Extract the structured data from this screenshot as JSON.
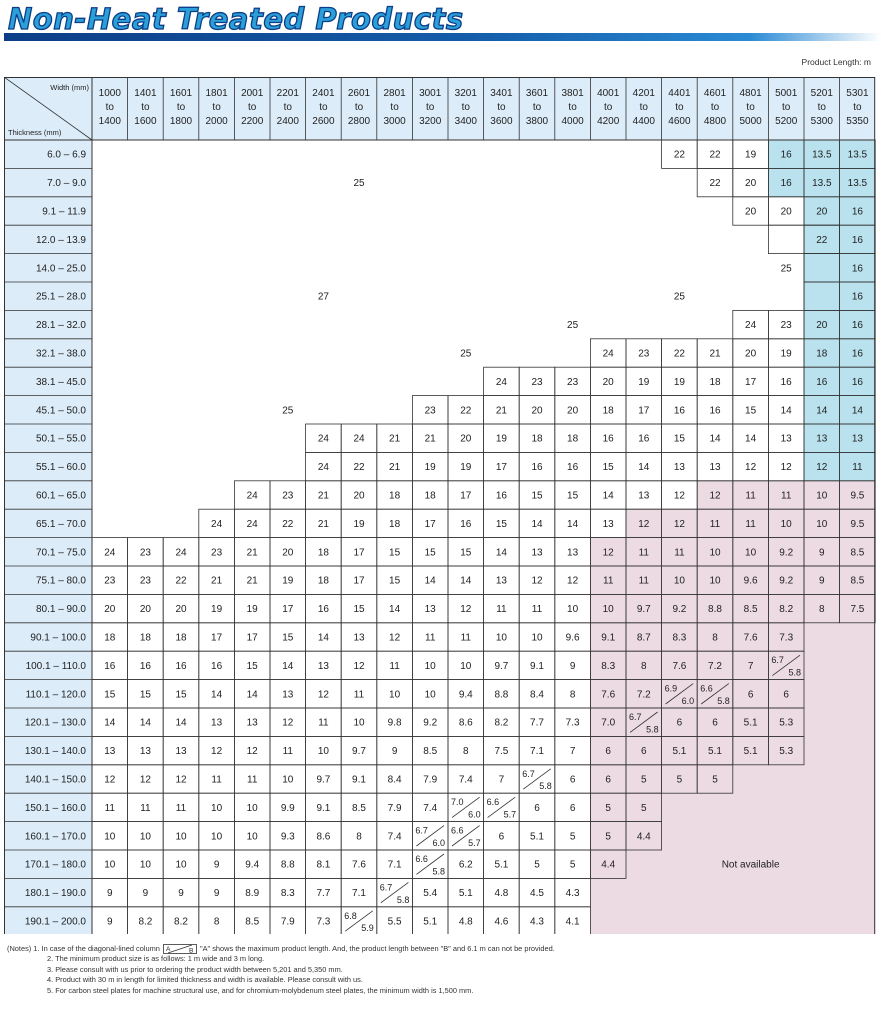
{
  "title": "Non-Heat Treated Products",
  "unit_label": "Product Length: m",
  "table": {
    "corner_width_label": "Width (mm)",
    "corner_thickness_label": "Thickness (mm)",
    "width_columns": [
      [
        "1000",
        "to",
        "1400"
      ],
      [
        "1401",
        "to",
        "1600"
      ],
      [
        "1601",
        "to",
        "1800"
      ],
      [
        "1801",
        "to",
        "2000"
      ],
      [
        "2001",
        "to",
        "2200"
      ],
      [
        "2201",
        "to",
        "2400"
      ],
      [
        "2401",
        "to",
        "2600"
      ],
      [
        "2601",
        "to",
        "2800"
      ],
      [
        "2801",
        "to",
        "3000"
      ],
      [
        "3001",
        "to",
        "3200"
      ],
      [
        "3201",
        "to",
        "3400"
      ],
      [
        "3401",
        "to",
        "3600"
      ],
      [
        "3601",
        "to",
        "3800"
      ],
      [
        "3801",
        "to",
        "4000"
      ],
      [
        "4001",
        "to",
        "4200"
      ],
      [
        "4201",
        "to",
        "4400"
      ],
      [
        "4401",
        "to",
        "4600"
      ],
      [
        "4601",
        "to",
        "4800"
      ],
      [
        "4801",
        "to",
        "5000"
      ],
      [
        "5001",
        "to",
        "5200"
      ],
      [
        "5201",
        "to",
        "5300"
      ],
      [
        "5301",
        "to",
        "5350"
      ]
    ],
    "thickness_rows": [
      "6.0 – 6.9",
      "7.0 – 9.0",
      "9.1 – 11.9",
      "12.0 – 13.9",
      "14.0 – 25.0",
      "25.1 – 28.0",
      "28.1 – 32.0",
      "32.1 – 38.0",
      "38.1 – 45.0",
      "45.1 – 50.0",
      "50.1 – 55.0",
      "55.1 – 60.0",
      "60.1 – 65.0",
      "65.1 – 70.0",
      "70.1 – 75.0",
      "75.1 – 80.0",
      "80.1 – 90.0",
      "90.1 – 100.0",
      "100.1 – 110.0",
      "110.1 – 120.0",
      "120.1 – 130.0",
      "130.1 – 140.0",
      "140.1 – 150.0",
      "150.1 – 160.0",
      "160.1 – 170.0",
      "170.1 – 180.0",
      "180.1 – 190.0",
      "190.1 – 200.0"
    ],
    "cells": [
      [
        null,
        null,
        null,
        null,
        null,
        null,
        null,
        null,
        null,
        null,
        null,
        null,
        null,
        null,
        null,
        null,
        "22",
        "22",
        "19",
        "16",
        "13.5",
        "13.5"
      ],
      [
        null,
        null,
        null,
        null,
        null,
        null,
        null,
        null,
        null,
        null,
        null,
        null,
        null,
        null,
        null,
        null,
        null,
        "22",
        "20",
        "16",
        "13.5",
        "13.5"
      ],
      [
        null,
        null,
        null,
        null,
        null,
        null,
        null,
        null,
        null,
        null,
        null,
        null,
        null,
        null,
        null,
        null,
        null,
        null,
        "20",
        "20",
        "20",
        "16"
      ],
      [
        null,
        null,
        null,
        null,
        null,
        null,
        null,
        null,
        null,
        null,
        null,
        null,
        null,
        null,
        null,
        null,
        null,
        null,
        null,
        null,
        "22",
        "16"
      ],
      [
        null,
        null,
        null,
        null,
        null,
        null,
        null,
        null,
        null,
        null,
        null,
        null,
        null,
        null,
        null,
        null,
        null,
        null,
        null,
        null,
        null,
        "16"
      ],
      [
        null,
        null,
        null,
        null,
        null,
        null,
        null,
        null,
        null,
        null,
        null,
        null,
        null,
        null,
        null,
        null,
        null,
        null,
        null,
        null,
        null,
        "16"
      ],
      [
        null,
        null,
        null,
        null,
        null,
        null,
        null,
        null,
        null,
        null,
        null,
        null,
        null,
        null,
        null,
        null,
        null,
        null,
        "24",
        "23",
        "20",
        "16"
      ],
      [
        null,
        null,
        null,
        null,
        null,
        null,
        null,
        null,
        null,
        null,
        null,
        null,
        null,
        null,
        "24",
        "23",
        "22",
        "21",
        "20",
        "19",
        "18",
        "16"
      ],
      [
        null,
        null,
        null,
        null,
        null,
        null,
        null,
        null,
        null,
        null,
        null,
        "24",
        "23",
        "23",
        "20",
        "19",
        "19",
        "18",
        "17",
        "16",
        "16",
        "16"
      ],
      [
        null,
        null,
        null,
        null,
        null,
        null,
        null,
        null,
        null,
        "23",
        "22",
        "21",
        "20",
        "20",
        "18",
        "17",
        "16",
        "16",
        "15",
        "14",
        "14",
        "14"
      ],
      [
        null,
        null,
        null,
        null,
        null,
        null,
        "24",
        "24",
        "21",
        "21",
        "20",
        "19",
        "18",
        "18",
        "16",
        "16",
        "15",
        "14",
        "14",
        "13",
        "13",
        "13"
      ],
      [
        null,
        null,
        null,
        null,
        null,
        null,
        "24",
        "22",
        "21",
        "19",
        "19",
        "17",
        "16",
        "16",
        "15",
        "14",
        "13",
        "13",
        "12",
        "12",
        "12",
        "11"
      ],
      [
        null,
        null,
        null,
        null,
        "24",
        "23",
        "21",
        "20",
        "18",
        "18",
        "17",
        "16",
        "15",
        "15",
        "14",
        "13",
        "12",
        "12",
        "11",
        "11",
        "10",
        "9.5"
      ],
      [
        null,
        null,
        null,
        "24",
        "24",
        "22",
        "21",
        "19",
        "18",
        "17",
        "16",
        "15",
        "14",
        "14",
        "13",
        "12",
        "12",
        "11",
        "11",
        "10",
        "10",
        "9.5"
      ],
      [
        "24",
        "23",
        "24",
        "23",
        "21",
        "20",
        "18",
        "17",
        "15",
        "15",
        "15",
        "14",
        "13",
        "13",
        "12",
        "11",
        "11",
        "10",
        "10",
        "9.2",
        "9",
        "8.5"
      ],
      [
        "23",
        "23",
        "22",
        "21",
        "21",
        "19",
        "18",
        "17",
        "15",
        "14",
        "14",
        "13",
        "12",
        "12",
        "11",
        "11",
        "10",
        "10",
        "9.6",
        "9.2",
        "9",
        "8.5"
      ],
      [
        "20",
        "20",
        "20",
        "19",
        "19",
        "17",
        "16",
        "15",
        "14",
        "13",
        "12",
        "11",
        "11",
        "10",
        "10",
        "9.7",
        "9.2",
        "8.8",
        "8.5",
        "8.2",
        "8",
        "7.5"
      ],
      [
        "18",
        "18",
        "18",
        "17",
        "17",
        "15",
        "14",
        "13",
        "12",
        "11",
        "11",
        "10",
        "10",
        "9.6",
        "9.1",
        "8.7",
        "8.3",
        "8",
        "7.6",
        "7.3",
        null,
        null
      ],
      [
        "16",
        "16",
        "16",
        "16",
        "15",
        "14",
        "13",
        "12",
        "11",
        "10",
        "10",
        "9.7",
        "9.1",
        "9",
        "8.3",
        "8",
        "7.6",
        "7.2",
        "7",
        [
          "6.7",
          "5.8"
        ],
        null,
        null
      ],
      [
        "15",
        "15",
        "15",
        "14",
        "14",
        "13",
        "12",
        "11",
        "10",
        "10",
        "9.4",
        "8.8",
        "8.4",
        "8",
        "7.6",
        "7.2",
        [
          "6.9",
          "6.0"
        ],
        [
          "6.6",
          "5.8"
        ],
        "6",
        "6",
        null,
        null
      ],
      [
        "14",
        "14",
        "14",
        "13",
        "13",
        "12",
        "11",
        "10",
        "9.8",
        "9.2",
        "8.6",
        "8.2",
        "7.7",
        "7.3",
        "7.0",
        [
          "6.7",
          "5.8"
        ],
        "6",
        "6",
        "5.1",
        "5.3",
        null,
        null
      ],
      [
        "13",
        "13",
        "13",
        "12",
        "12",
        "11",
        "10",
        "9.7",
        "9",
        "8.5",
        "8",
        "7.5",
        "7.1",
        "7",
        "6",
        "6",
        "5.1",
        "5.1",
        "5.1",
        "5.3",
        null,
        null
      ],
      [
        "12",
        "12",
        "12",
        "11",
        "11",
        "10",
        "9.7",
        "9.1",
        "8.4",
        "7.9",
        "7.4",
        "7",
        [
          "6.7",
          "5.8"
        ],
        "6",
        "6",
        "5",
        "5",
        "5",
        null,
        null,
        null,
        null
      ],
      [
        "11",
        "11",
        "11",
        "10",
        "10",
        "9.9",
        "9.1",
        "8.5",
        "7.9",
        "7.4",
        [
          "7.0",
          "6.0"
        ],
        [
          "6.6",
          "5.7"
        ],
        "6",
        "6",
        "5",
        "5",
        null,
        null,
        null,
        null,
        null,
        null
      ],
      [
        "10",
        "10",
        "10",
        "10",
        "10",
        "9.3",
        "8.6",
        "8",
        "7.4",
        [
          "6.7",
          "6.0"
        ],
        [
          "6.6",
          "5.7"
        ],
        "6",
        "5.1",
        "5",
        "5",
        "4.4",
        null,
        null,
        null,
        null,
        null,
        null
      ],
      [
        "10",
        "10",
        "10",
        "9",
        "9.4",
        "8.8",
        "8.1",
        "7.6",
        "7.1",
        [
          "6.6",
          "5.8"
        ],
        "6.2",
        "5.1",
        "5",
        "5",
        "4.4",
        null,
        null,
        null,
        null,
        null,
        null,
        null
      ],
      [
        "9",
        "9",
        "9",
        "9",
        "8.9",
        "8.3",
        "7.7",
        "7.1",
        [
          "6.7",
          "5.8"
        ],
        "5.4",
        "5.1",
        "4.8",
        "4.5",
        "4.3",
        null,
        null,
        null,
        null,
        null,
        null,
        null,
        null
      ],
      [
        "9",
        "8.2",
        "8.2",
        "8",
        "8.5",
        "7.9",
        "7.3",
        [
          "6.8",
          "5.9"
        ],
        "5.5",
        "5.1",
        "4.8",
        "4.6",
        "4.3",
        "4.1",
        null,
        null,
        null,
        null,
        null,
        null,
        null,
        null
      ]
    ],
    "region_labels": [
      "25",
      "27",
      "25",
      "25",
      "25",
      "25",
      "25"
    ],
    "not_available": "Not available",
    "colors": {
      "header": "#dcecf8",
      "blue_region": "#b9e1ee",
      "pink_region": "#ecdbe3",
      "grid": "#333333"
    }
  },
  "notes": {
    "prefix": "(Notes)",
    "note1_before": "1. In case of the diagonal-lined column",
    "legend_a": "A",
    "legend_b": "B",
    "note1_after": "\"A\" shows the maximum product length. And, the product length between \"B\" and 6.1 m can not be provided.",
    "items": [
      "2. The minimum product size is as follows: 1 m wide and 3 m long.",
      "3. Please consult with us prior to ordering the product width between 5,201 and 5,350 mm.",
      "4. Product with 30 m in length for limited thickness and width is available. Please consult with us.",
      "5. For carbon steel plates for machine structural use, and for chromium-molybdenum steel plates, the minimum width is 1,500 mm."
    ]
  }
}
